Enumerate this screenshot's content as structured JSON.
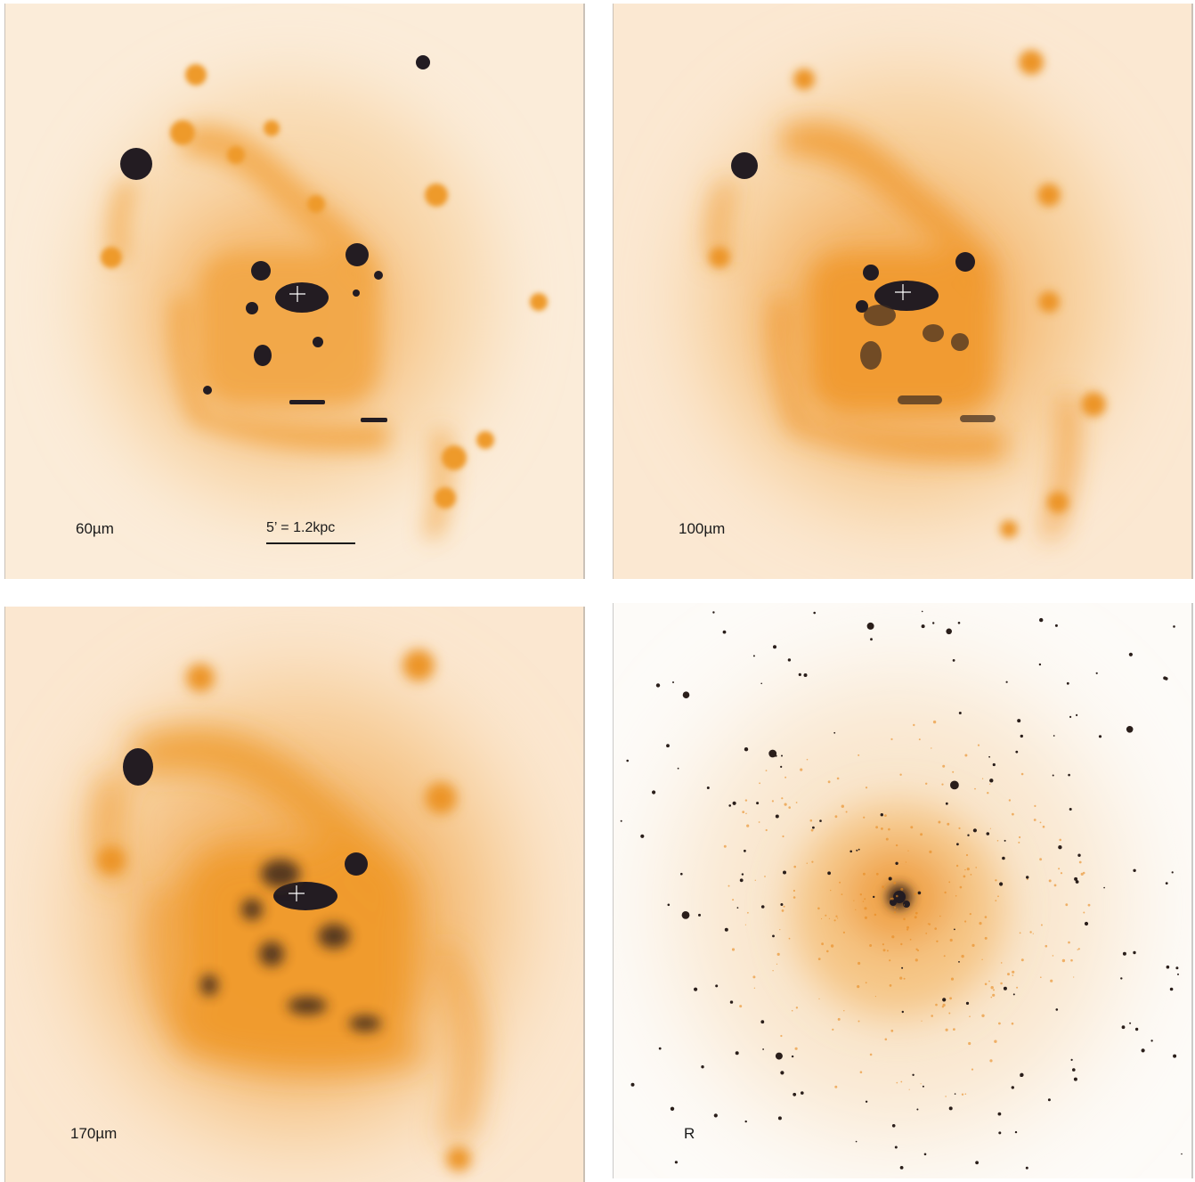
{
  "panels": [
    {
      "id": "p60",
      "label": "60µm",
      "colors": {
        "bg": "#fbe9d6",
        "diffuse": "#f6c48a",
        "bright": "#f0951a",
        "core": "#1f1a21"
      }
    },
    {
      "id": "p100",
      "label": "100µm",
      "colors": {
        "bg": "#fbe9d6",
        "diffuse": "#f6c48a",
        "bright": "#f0951a",
        "core": "#1f1a21"
      }
    },
    {
      "id": "p170",
      "label": "170µm",
      "colors": {
        "bg": "#fbe9d6",
        "diffuse": "#f6c48a",
        "bright": "#f0951a",
        "core": "#1f1a21"
      }
    },
    {
      "id": "pR",
      "label": "R",
      "colors": {
        "bg": "#fdfbf8",
        "diffuse": "#f5c68c",
        "bright": "#f0951a",
        "core": "#1f1a21"
      }
    }
  ],
  "scale_bar": {
    "label": "5’ = 1.2kpc"
  }
}
